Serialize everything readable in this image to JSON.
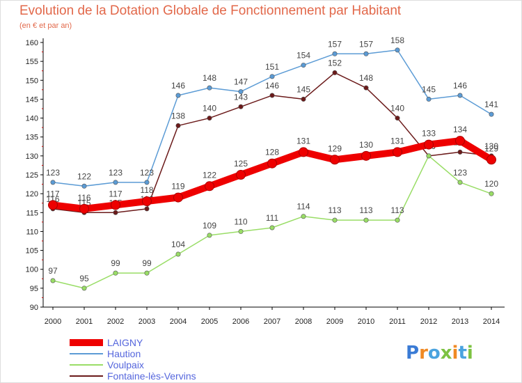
{
  "chart_data": {
    "type": "line",
    "title": "Evolution de la Dotation Globale de Fonctionnement par Habitant",
    "subtitle": "(en € et par an)",
    "xlabel": "",
    "ylabel": "",
    "x": [
      "2000",
      "2001",
      "2002",
      "2003",
      "2004",
      "2005",
      "2006",
      "2007",
      "2008",
      "2009",
      "2010",
      "2011",
      "2012",
      "2013",
      "2014"
    ],
    "ylim": [
      90,
      160
    ],
    "y_ticks": [
      "90",
      "95",
      "100",
      "105",
      "110",
      "115",
      "120",
      "125",
      "130",
      "135",
      "140",
      "145",
      "150",
      "155",
      "160"
    ],
    "grid": false,
    "legend_position": "bottom-left",
    "series": [
      {
        "name": "Haution",
        "color": "#5b9bd5",
        "values": [
          123,
          122,
          123,
          123,
          146,
          148,
          147,
          151,
          154,
          157,
          157,
          158,
          145,
          146,
          141
        ],
        "labels": [
          "123",
          "122",
          "123",
          "123",
          "146",
          "148",
          "147",
          "151",
          "154",
          "157",
          "157",
          "158",
          "145",
          "146",
          "141"
        ]
      },
      {
        "name": "Fontaine-lès-Vervins",
        "color": "#6b1a1a",
        "values": [
          116,
          115,
          115,
          116,
          138,
          140,
          143,
          146,
          145,
          152,
          148,
          140,
          130,
          131,
          130
        ],
        "labels": [
          "116",
          "115",
          "115",
          "116",
          "138",
          "140",
          "143",
          "146",
          "145",
          "152",
          "148",
          "140",
          "130",
          "131",
          "130"
        ]
      },
      {
        "name": "Voulpaix",
        "color": "#99dd66",
        "values": [
          97,
          95,
          99,
          99,
          104,
          109,
          110,
          111,
          114,
          113,
          113,
          113,
          130,
          123,
          120
        ],
        "labels": [
          "97",
          "95",
          "99",
          "99",
          "104",
          "109",
          "110",
          "111",
          "114",
          "113",
          "113",
          "113",
          "130",
          "123",
          "120"
        ]
      },
      {
        "name": "LAIGNY",
        "color": "#ee0000",
        "values": [
          117,
          116,
          117,
          118,
          119,
          122,
          125,
          128,
          131,
          129,
          130,
          131,
          133,
          134,
          129
        ],
        "labels": [
          "117",
          "116",
          "117",
          "118",
          "119",
          "122",
          "125",
          "128",
          "131",
          "129",
          "130",
          "131",
          "133",
          "134",
          "129"
        ]
      }
    ],
    "legend": [
      "LAIGNY",
      "Haution",
      "Voulpaix",
      "Fontaine-lès-Vervins"
    ]
  },
  "branding": {
    "logo_text": "Proxiti"
  }
}
